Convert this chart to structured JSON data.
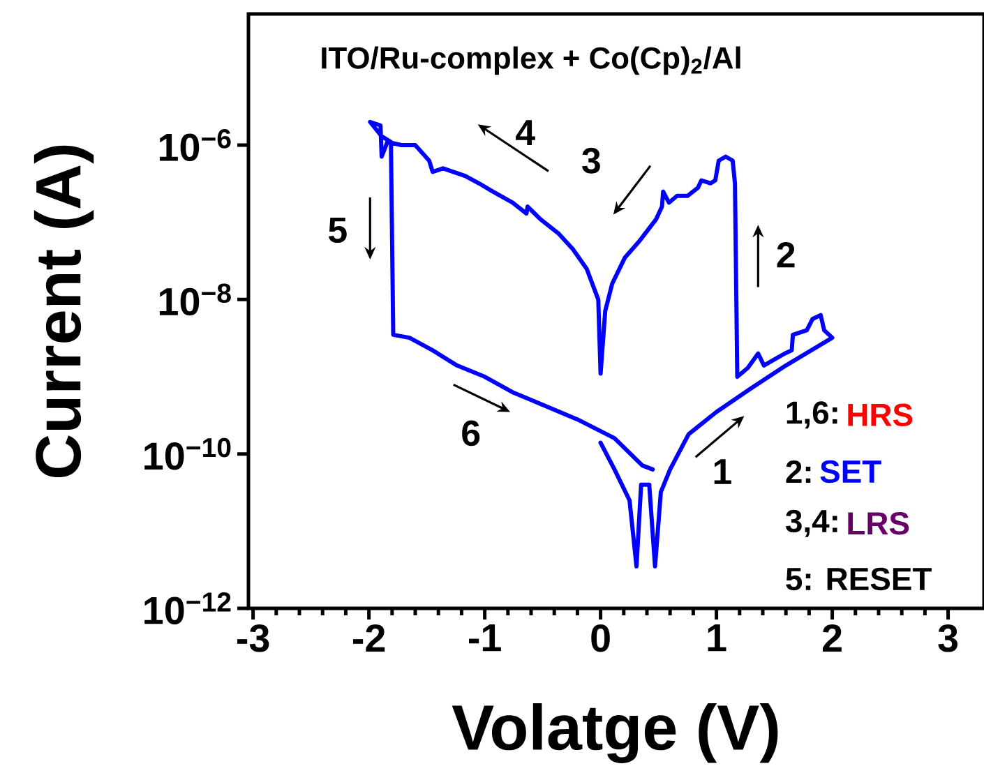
{
  "chart_data": {
    "type": "line",
    "title": "ITO/Ru-complex + Co(Cp)$_{2}$/Al",
    "xlabel": "Volatge (V)",
    "ylabel": "Current (A)",
    "xlim": [
      -3.04,
      3.31
    ],
    "ylim": [
      1e-12,
      5e-05
    ],
    "xticks": [
      -3,
      -2,
      -1,
      0,
      1,
      2,
      3
    ],
    "yticks": [
      {
        "value": 1e-12,
        "label": "10$^{−12}$"
      },
      {
        "value": 1e-10,
        "label": "10$^{−10}$"
      },
      {
        "value": 1e-08,
        "label": "10$^{−8}$"
      },
      {
        "value": 1e-06,
        "label": "10$^{−6}$"
      }
    ],
    "log": "y",
    "grid": false,
    "marker": "none",
    "line_style": "solid",
    "annotations": [
      "1",
      "2",
      "3",
      "4",
      "5",
      "6",
      "1,6:",
      "HRS",
      "2:",
      "SET",
      "3,4:",
      "LRS",
      "5: RESET"
    ],
    "series": [
      {
        "color": "#0000ff",
        "x": [
          0.0,
          0.12,
          0.25,
          0.31,
          0.35,
          0.42,
          0.47,
          0.52,
          0.6,
          0.76,
          1.0,
          1.3,
          1.6,
          2.0,
          1.93,
          1.9,
          1.83,
          1.78,
          1.66,
          1.65,
          1.59,
          1.41,
          1.36,
          1.27,
          1.18,
          1.16,
          1.14,
          1.08,
          1.02,
          0.99,
          0.95,
          0.87,
          0.84,
          0.75,
          0.66,
          0.59,
          0.54,
          0.53,
          0.48,
          0.33,
          0.21,
          0.1,
          0.04,
          0.0,
          -0.02,
          -0.12,
          -0.24,
          -0.36,
          -0.52,
          -0.63,
          -0.64,
          -0.76,
          -0.93,
          -1.05,
          -1.17,
          -1.36,
          -1.45,
          -1.48,
          -1.6,
          -1.72,
          -1.84,
          -1.89,
          -1.9,
          -1.99,
          -1.89,
          -1.81,
          -1.79,
          -1.65,
          -1.45,
          -1.24,
          -1.0,
          -0.76,
          -0.6,
          -0.2,
          0.12,
          0.36,
          0.45
        ],
        "values": [
          1.4e-10,
          6.3e-11,
          2.5e-11,
          3.5e-12,
          4e-11,
          4e-11,
          3.5e-12,
          3.2e-11,
          6.3e-11,
          1.8e-10,
          3.5e-10,
          7.1e-10,
          1.4e-09,
          3.2e-09,
          4e-09,
          6.3e-09,
          5.6e-09,
          4e-09,
          3.5e-09,
          2.2e-09,
          2e-09,
          1.4e-09,
          2e-09,
          1.3e-09,
          1e-09,
          3.2e-07,
          6.3e-07,
          7.1e-07,
          6.3e-07,
          3.5e-07,
          3.2e-07,
          3.5e-07,
          2.8e-07,
          2.2e-07,
          2.2e-07,
          1.8e-07,
          2.5e-07,
          1.6e-07,
          1.1e-07,
          5.6e-08,
          3.5e-08,
          1.6e-08,
          7.1e-09,
          1.1e-09,
          1e-08,
          2.5e-08,
          4.5e-08,
          7.1e-08,
          1.1e-07,
          1.6e-07,
          1.3e-07,
          1.8e-07,
          2.5e-07,
          3.2e-07,
          4e-07,
          5e-07,
          4.5e-07,
          6.3e-07,
          1e-06,
          1e-06,
          1.1e-06,
          7.1e-07,
          1.8e-06,
          2e-06,
          1.3e-06,
          1.1e-06,
          3.5e-09,
          3.2e-09,
          2.2e-09,
          1.4e-09,
          1e-09,
          6.3e-10,
          5e-10,
          2.8e-10,
          1.6e-10,
          7.1e-11,
          6.3e-11
        ]
      }
    ]
  }
}
